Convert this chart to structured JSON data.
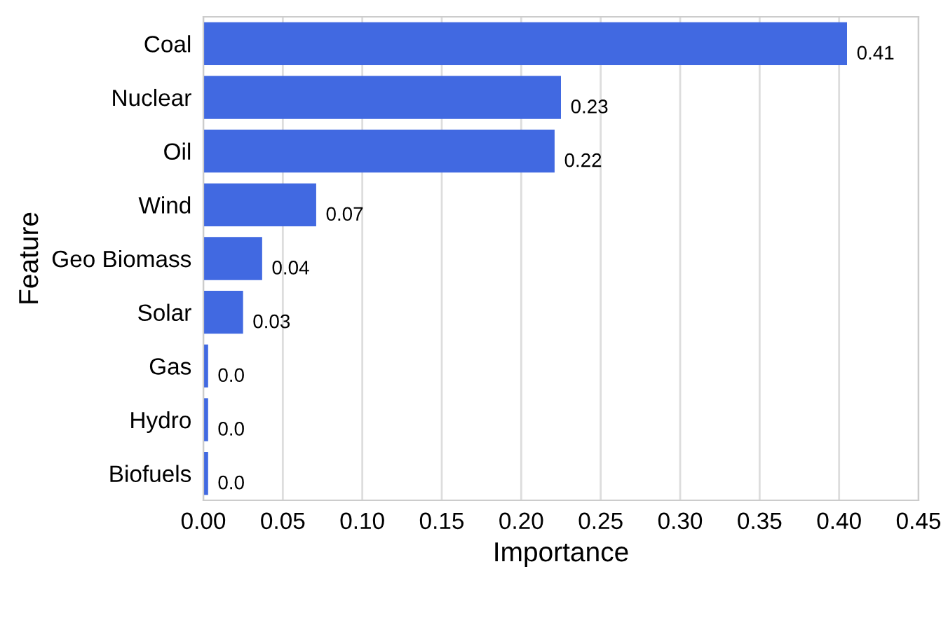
{
  "chart_data": {
    "type": "bar",
    "orientation": "horizontal",
    "xlabel": "Importance",
    "ylabel": "Feature",
    "categories": [
      "Coal",
      "Nuclear",
      "Oil",
      "Wind",
      "Geo Biomass",
      "Solar",
      "Gas",
      "Hydro",
      "Biofuels"
    ],
    "values": [
      0.405,
      0.225,
      0.221,
      0.071,
      0.037,
      0.025,
      0.003,
      0.003,
      0.003
    ],
    "value_labels": [
      "0.41",
      "0.23",
      "0.22",
      "0.07",
      "0.04",
      "0.03",
      "0.0",
      "0.0",
      "0.0"
    ],
    "color": "#4169e1",
    "xlim": [
      0,
      0.45
    ],
    "xticks": [
      {
        "value": 0,
        "label": "0.00"
      },
      0.05,
      {
        "value": 0.1,
        "label": "0.10"
      },
      0.15,
      {
        "value": 0.2,
        "label": "0.20"
      },
      0.25,
      {
        "value": 0.3,
        "label": "0.30"
      },
      0.35,
      {
        "value": 0.4,
        "label": "0.40"
      },
      0.45
    ],
    "grid": "x",
    "legend": false
  }
}
